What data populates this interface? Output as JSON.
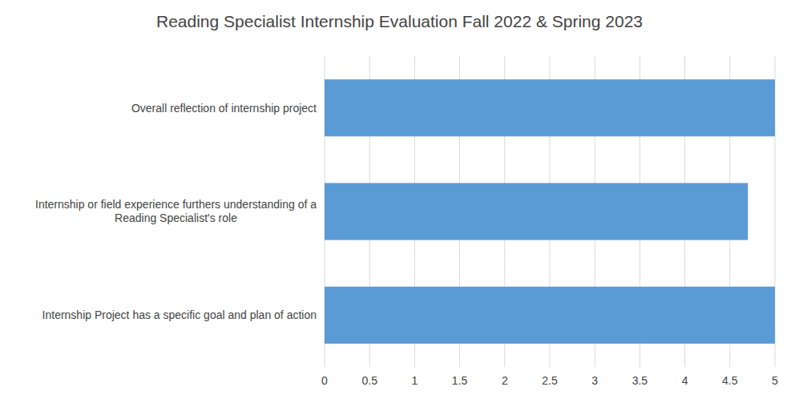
{
  "chart_data": {
    "type": "bar",
    "orientation": "horizontal",
    "title": "Reading Specialist Internship Evaluation Fall 2022 & Spring 2023",
    "categories": [
      "Internship Project has a specific goal and plan of action",
      "Internship or field experience furthers understanding of a\nReading Specialist's role",
      "Overall reflection of internship project"
    ],
    "values": [
      5.0,
      4.7,
      5.0
    ],
    "color": "#5B9BD5",
    "xlim": [
      0,
      5.0
    ],
    "xticks": [
      0,
      0.5,
      1,
      1.5,
      2,
      2.5,
      3,
      3.5,
      4,
      4.5,
      5
    ],
    "grid": true
  }
}
